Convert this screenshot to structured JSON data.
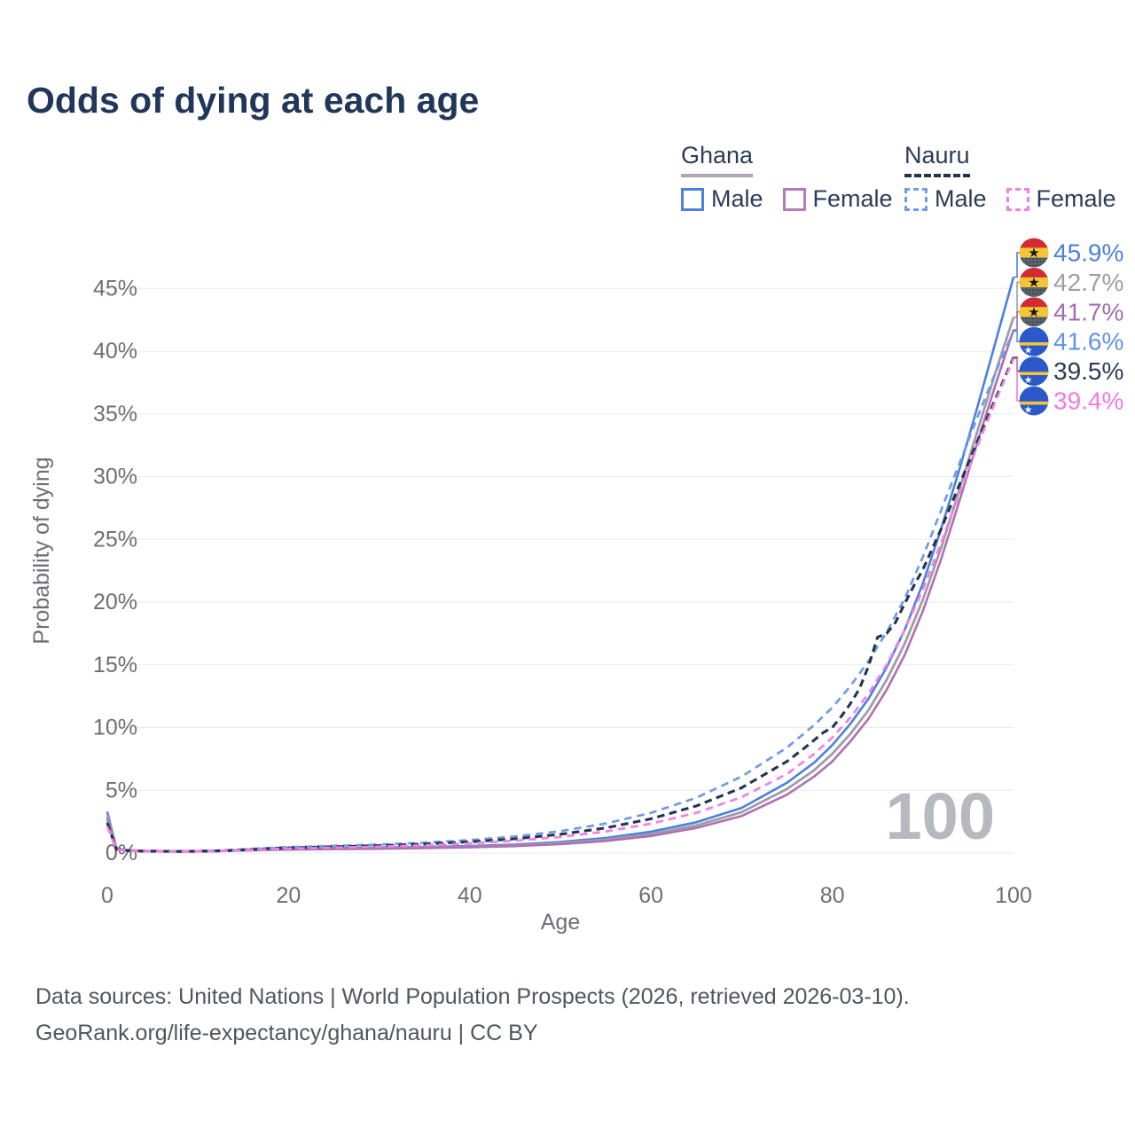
{
  "title": "Odds of dying at each age",
  "legend": {
    "groups": [
      {
        "name": "Ghana",
        "items": [
          {
            "label": "Male"
          },
          {
            "label": "Female"
          }
        ]
      },
      {
        "name": "Nauru",
        "items": [
          {
            "label": "Male"
          },
          {
            "label": "Female"
          }
        ]
      }
    ]
  },
  "watermark": "100",
  "colors": {
    "ghana_male": "#4a80e0",
    "ghana_total": "#9d9da5",
    "ghana_female": "#b06fb2",
    "nauru_male": "#6f9ce8",
    "nauru_total": "#24344f",
    "nauru_female": "#f57ee4",
    "grid": "#e9eaec",
    "axis_text": "#6d6d77",
    "watermark": "#b6b9bf",
    "label_ghana_male": "#4a80e0",
    "label_ghana_total": "#9d9da5",
    "label_ghana_female": "#a56cb0",
    "label_nauru_male": "#6193e6",
    "label_nauru_total": "#2b3b57",
    "label_nauru_female": "#f279e2"
  },
  "chart_data": {
    "type": "line",
    "title": "Odds of dying at each age",
    "xlabel": "Age",
    "ylabel": "Probability of dying",
    "xlim": [
      0,
      100
    ],
    "ylim": [
      0,
      48
    ],
    "x_ticks": [
      0,
      20,
      40,
      60,
      80,
      100
    ],
    "y_ticks": [
      0,
      5,
      10,
      15,
      20,
      25,
      30,
      35,
      40,
      45
    ],
    "y_tick_suffix": "%",
    "grid": true,
    "legend_position": "top-right",
    "current_age_indicator": "100",
    "series": [
      {
        "name": "Ghana Male",
        "country": "ghana",
        "style": "solid",
        "color": "#4a80e0",
        "width": 2.6,
        "dash": "",
        "end_label": "45.9%",
        "end_value": 45.9,
        "label_color": "#4a80e0",
        "points": [
          [
            0,
            3.3
          ],
          [
            1,
            0.4
          ],
          [
            2,
            0.25
          ],
          [
            4,
            0.18
          ],
          [
            6,
            0.15
          ],
          [
            8,
            0.14
          ],
          [
            10,
            0.15
          ],
          [
            12,
            0.17
          ],
          [
            14,
            0.22
          ],
          [
            16,
            0.28
          ],
          [
            18,
            0.33
          ],
          [
            20,
            0.36
          ],
          [
            25,
            0.4
          ],
          [
            30,
            0.44
          ],
          [
            35,
            0.49
          ],
          [
            40,
            0.56
          ],
          [
            45,
            0.68
          ],
          [
            50,
            0.88
          ],
          [
            55,
            1.2
          ],
          [
            60,
            1.7
          ],
          [
            65,
            2.45
          ],
          [
            70,
            3.6
          ],
          [
            75,
            5.6
          ],
          [
            78,
            7.2
          ],
          [
            80,
            8.6
          ],
          [
            82,
            10.3
          ],
          [
            84,
            12.3
          ],
          [
            86,
            14.8
          ],
          [
            88,
            17.8
          ],
          [
            90,
            21.5
          ],
          [
            92,
            25.8
          ],
          [
            94,
            30.5
          ],
          [
            96,
            35.5
          ],
          [
            98,
            40.7
          ],
          [
            100,
            45.9
          ]
        ]
      },
      {
        "name": "Ghana Both sexes",
        "country": "ghana",
        "style": "solid",
        "color": "#9d9da5",
        "width": 2.8,
        "dash": "",
        "end_label": "42.7%",
        "end_value": 42.7,
        "label_color": "#9d9da5",
        "points": [
          [
            0,
            3.05
          ],
          [
            1,
            0.37
          ],
          [
            2,
            0.23
          ],
          [
            4,
            0.16
          ],
          [
            6,
            0.14
          ],
          [
            8,
            0.13
          ],
          [
            10,
            0.14
          ],
          [
            12,
            0.16
          ],
          [
            14,
            0.2
          ],
          [
            16,
            0.25
          ],
          [
            18,
            0.29
          ],
          [
            20,
            0.32
          ],
          [
            25,
            0.36
          ],
          [
            30,
            0.39
          ],
          [
            35,
            0.44
          ],
          [
            40,
            0.5
          ],
          [
            45,
            0.61
          ],
          [
            50,
            0.79
          ],
          [
            55,
            1.07
          ],
          [
            60,
            1.52
          ],
          [
            65,
            2.2
          ],
          [
            70,
            3.25
          ],
          [
            75,
            5.1
          ],
          [
            78,
            6.6
          ],
          [
            80,
            7.9
          ],
          [
            82,
            9.5
          ],
          [
            84,
            11.4
          ],
          [
            86,
            13.8
          ],
          [
            88,
            16.7
          ],
          [
            90,
            20.2
          ],
          [
            92,
            24.3
          ],
          [
            94,
            28.9
          ],
          [
            96,
            33.6
          ],
          [
            98,
            38.3
          ],
          [
            100,
            42.7
          ]
        ]
      },
      {
        "name": "Ghana Female",
        "country": "ghana",
        "style": "solid",
        "color": "#b06fb2",
        "width": 2.6,
        "dash": "",
        "end_label": "41.7%",
        "end_value": 41.7,
        "label_color": "#a56cb0",
        "points": [
          [
            0,
            2.8
          ],
          [
            1,
            0.34
          ],
          [
            2,
            0.21
          ],
          [
            4,
            0.15
          ],
          [
            6,
            0.13
          ],
          [
            8,
            0.12
          ],
          [
            10,
            0.13
          ],
          [
            12,
            0.15
          ],
          [
            14,
            0.18
          ],
          [
            16,
            0.22
          ],
          [
            18,
            0.25
          ],
          [
            20,
            0.27
          ],
          [
            25,
            0.31
          ],
          [
            30,
            0.34
          ],
          [
            35,
            0.39
          ],
          [
            40,
            0.45
          ],
          [
            45,
            0.55
          ],
          [
            50,
            0.71
          ],
          [
            55,
            0.96
          ],
          [
            60,
            1.36
          ],
          [
            65,
            2.0
          ],
          [
            70,
            2.95
          ],
          [
            75,
            4.65
          ],
          [
            78,
            6.1
          ],
          [
            80,
            7.3
          ],
          [
            82,
            8.9
          ],
          [
            84,
            10.7
          ],
          [
            86,
            13.0
          ],
          [
            88,
            15.8
          ],
          [
            90,
            19.3
          ],
          [
            92,
            23.4
          ],
          [
            94,
            28.0
          ],
          [
            96,
            32.7
          ],
          [
            98,
            37.3
          ],
          [
            100,
            41.7
          ]
        ]
      },
      {
        "name": "Nauru Male",
        "country": "nauru",
        "style": "dashed",
        "color": "#6f9ce8",
        "width": 2.7,
        "dash": "8.5 6",
        "end_label": "41.6%",
        "end_value": 41.6,
        "label_color": "#6193e6",
        "points": [
          [
            0,
            2.6
          ],
          [
            1,
            0.32
          ],
          [
            2,
            0.22
          ],
          [
            4,
            0.17
          ],
          [
            6,
            0.15
          ],
          [
            8,
            0.15
          ],
          [
            10,
            0.16
          ],
          [
            12,
            0.19
          ],
          [
            14,
            0.25
          ],
          [
            16,
            0.33
          ],
          [
            18,
            0.41
          ],
          [
            20,
            0.47
          ],
          [
            25,
            0.57
          ],
          [
            30,
            0.68
          ],
          [
            35,
            0.83
          ],
          [
            40,
            1.03
          ],
          [
            45,
            1.32
          ],
          [
            50,
            1.74
          ],
          [
            55,
            2.35
          ],
          [
            60,
            3.2
          ],
          [
            65,
            4.4
          ],
          [
            70,
            6.1
          ],
          [
            75,
            8.4
          ],
          [
            78,
            10.2
          ],
          [
            80,
            11.6
          ],
          [
            82,
            13.3
          ],
          [
            84,
            15.3
          ],
          [
            86,
            17.6
          ],
          [
            88,
            20.3
          ],
          [
            90,
            23.6
          ],
          [
            92,
            27.3
          ],
          [
            94,
            31.0
          ],
          [
            96,
            34.7
          ],
          [
            98,
            38.3
          ],
          [
            100,
            41.6
          ]
        ]
      },
      {
        "name": "Nauru Both sexes",
        "country": "nauru",
        "style": "dashed",
        "color": "#24344f",
        "width": 3.1,
        "dash": "8.5 5.5",
        "end_label": "39.5%",
        "end_value": 39.5,
        "label_color": "#2b3b57",
        "points": [
          [
            0,
            2.4
          ],
          [
            1,
            0.3
          ],
          [
            2,
            0.2
          ],
          [
            4,
            0.15
          ],
          [
            6,
            0.14
          ],
          [
            8,
            0.13
          ],
          [
            10,
            0.14
          ],
          [
            12,
            0.17
          ],
          [
            14,
            0.22
          ],
          [
            16,
            0.29
          ],
          [
            18,
            0.36
          ],
          [
            20,
            0.41
          ],
          [
            25,
            0.5
          ],
          [
            30,
            0.59
          ],
          [
            35,
            0.72
          ],
          [
            40,
            0.89
          ],
          [
            45,
            1.13
          ],
          [
            50,
            1.49
          ],
          [
            55,
            2.0
          ],
          [
            60,
            2.73
          ],
          [
            65,
            3.75
          ],
          [
            70,
            5.2
          ],
          [
            75,
            7.3
          ],
          [
            77,
            8.4
          ],
          [
            79,
            9.6
          ],
          [
            80,
            10.0
          ],
          [
            81,
            10.9
          ],
          [
            82,
            11.9
          ],
          [
            83,
            13.1
          ],
          [
            84,
            14.9
          ],
          [
            85,
            17.2
          ],
          [
            86,
            17.5
          ],
          [
            87,
            18.4
          ],
          [
            88,
            19.9
          ],
          [
            89,
            21.3
          ],
          [
            90,
            22.6
          ],
          [
            92,
            25.8
          ],
          [
            94,
            29.3
          ],
          [
            96,
            32.8
          ],
          [
            98,
            36.2
          ],
          [
            100,
            39.5
          ]
        ]
      },
      {
        "name": "Nauru Female",
        "country": "nauru",
        "style": "dashed",
        "color": "#f57ee4",
        "width": 2.7,
        "dash": "8.5 6",
        "end_label": "39.4%",
        "end_value": 39.4,
        "label_color": "#f279e2",
        "points": [
          [
            0,
            2.1
          ],
          [
            1,
            0.28
          ],
          [
            2,
            0.19
          ],
          [
            4,
            0.14
          ],
          [
            6,
            0.12
          ],
          [
            8,
            0.12
          ],
          [
            10,
            0.13
          ],
          [
            12,
            0.15
          ],
          [
            14,
            0.19
          ],
          [
            16,
            0.25
          ],
          [
            18,
            0.31
          ],
          [
            20,
            0.35
          ],
          [
            25,
            0.43
          ],
          [
            30,
            0.51
          ],
          [
            35,
            0.62
          ],
          [
            40,
            0.77
          ],
          [
            45,
            0.98
          ],
          [
            50,
            1.28
          ],
          [
            55,
            1.72
          ],
          [
            60,
            2.34
          ],
          [
            65,
            3.2
          ],
          [
            70,
            4.45
          ],
          [
            75,
            6.3
          ],
          [
            78,
            7.9
          ],
          [
            80,
            9.2
          ],
          [
            82,
            10.8
          ],
          [
            84,
            12.7
          ],
          [
            86,
            15.0
          ],
          [
            88,
            17.8
          ],
          [
            90,
            21.0
          ],
          [
            92,
            24.7
          ],
          [
            94,
            28.6
          ],
          [
            96,
            32.4
          ],
          [
            98,
            36.0
          ],
          [
            100,
            39.4
          ]
        ]
      }
    ]
  },
  "footer": {
    "line1": "Data sources: United Nations | World Population Prospects (2026, retrieved 2026-03-10).",
    "line2": "GeoRank.org/life-expectancy/ghana/nauru | CC BY"
  }
}
